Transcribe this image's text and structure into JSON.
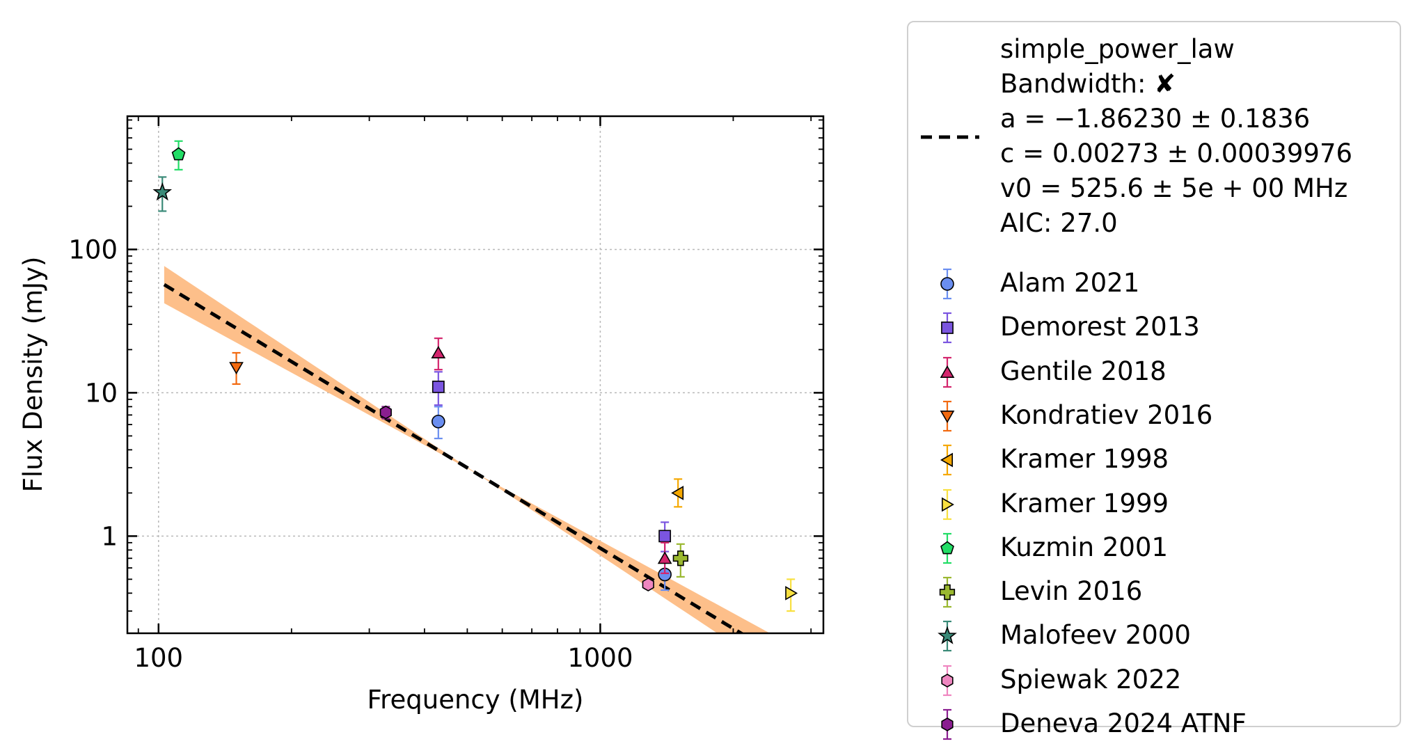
{
  "chart_data": {
    "type": "scatter",
    "xlabel": "Frequency (MHz)",
    "ylabel": "Flux Density (mJy)",
    "xscale": "log",
    "yscale": "log",
    "xlim": [
      85,
      3200
    ],
    "ylim": [
      0.21,
      850
    ],
    "xticks": [
      {
        "value": 100,
        "label": "100"
      },
      {
        "value": 1000,
        "label": "1000"
      }
    ],
    "yticks": [
      {
        "value": 1,
        "label": "1"
      },
      {
        "value": 10,
        "label": "10"
      },
      {
        "value": 100,
        "label": "100"
      }
    ],
    "grid": true,
    "legend_position": "outside-right",
    "fit": {
      "model": "simple_power_law",
      "bandwidth_label": "Bandwidth: ✘",
      "a_label": "a = −1.86230 ± 0.1836",
      "c_label": "c = 0.00273 ± 0.00039976",
      "v0_label": "v0 = 525.6 ± 5e + 00 MHz",
      "aic_label": "AIC: 27.0",
      "a": -1.8623,
      "c": 0.00273,
      "v0": 525.6,
      "x_range": [
        103,
        2500
      ],
      "line_color": "#000000",
      "band_color": "#fdbf8a"
    },
    "series": [
      {
        "name": "Alam 2021",
        "marker": "circle",
        "color": "#6a8ef0",
        "ecolor": "#6a8ef0",
        "points": [
          {
            "x": 430,
            "y": 6.3,
            "lo": 4.8,
            "hi": 8.0
          },
          {
            "x": 1400,
            "y": 0.54,
            "lo": 0.42,
            "hi": 0.68
          }
        ]
      },
      {
        "name": "Demorest 2013",
        "marker": "square",
        "color": "#7b55e0",
        "ecolor": "#7b55e0",
        "points": [
          {
            "x": 430,
            "y": 11.0,
            "lo": 8.2,
            "hi": 14.0
          },
          {
            "x": 1400,
            "y": 1.0,
            "lo": 0.78,
            "hi": 1.25
          }
        ]
      },
      {
        "name": "Gentile 2018",
        "marker": "triangle-up",
        "color": "#d4256d",
        "ecolor": "#d4256d",
        "points": [
          {
            "x": 430,
            "y": 19.0,
            "lo": 14.5,
            "hi": 24.0
          },
          {
            "x": 1400,
            "y": 0.7,
            "lo": 0.55,
            "hi": 0.9
          }
        ]
      },
      {
        "name": "Kondratiev 2016",
        "marker": "triangle-down",
        "color": "#f26a10",
        "ecolor": "#f26a10",
        "points": [
          {
            "x": 150,
            "y": 15.0,
            "lo": 11.5,
            "hi": 19.0
          }
        ]
      },
      {
        "name": "Kramer 1998",
        "marker": "triangle-left",
        "color": "#f5a800",
        "ecolor": "#f5a800",
        "points": [
          {
            "x": 1500,
            "y": 2.0,
            "lo": 1.6,
            "hi": 2.5
          }
        ]
      },
      {
        "name": "Kramer 1999",
        "marker": "triangle-right",
        "color": "#f8e040",
        "ecolor": "#f8e040",
        "points": [
          {
            "x": 2700,
            "y": 0.4,
            "lo": 0.3,
            "hi": 0.5
          }
        ]
      },
      {
        "name": "Kuzmin 2001",
        "marker": "pentagon",
        "color": "#22dd66",
        "ecolor": "#22dd66",
        "points": [
          {
            "x": 111,
            "y": 460,
            "lo": 360,
            "hi": 570
          }
        ]
      },
      {
        "name": "Levin 2016",
        "marker": "plus",
        "color": "#9ab830",
        "ecolor": "#9ab830",
        "points": [
          {
            "x": 1520,
            "y": 0.7,
            "lo": 0.52,
            "hi": 0.88
          }
        ]
      },
      {
        "name": "Malofeev 2000",
        "marker": "star",
        "color": "#3a8a78",
        "ecolor": "#3a8a78",
        "points": [
          {
            "x": 102,
            "y": 250,
            "lo": 185,
            "hi": 320
          }
        ]
      },
      {
        "name": "Spiewak 2022",
        "marker": "hexagon",
        "color": "#ef86c0",
        "ecolor": "#ef86c0",
        "points": [
          {
            "x": 1284,
            "y": 0.46,
            "lo": 0.43,
            "hi": 0.49
          }
        ]
      },
      {
        "name": "Deneva 2024 ATNF",
        "marker": "hexagon",
        "color": "#8a1e90",
        "ecolor": "#8a1e90",
        "points": [
          {
            "x": 327,
            "y": 7.3,
            "lo": 6.6,
            "hi": 8.0
          }
        ]
      }
    ]
  }
}
